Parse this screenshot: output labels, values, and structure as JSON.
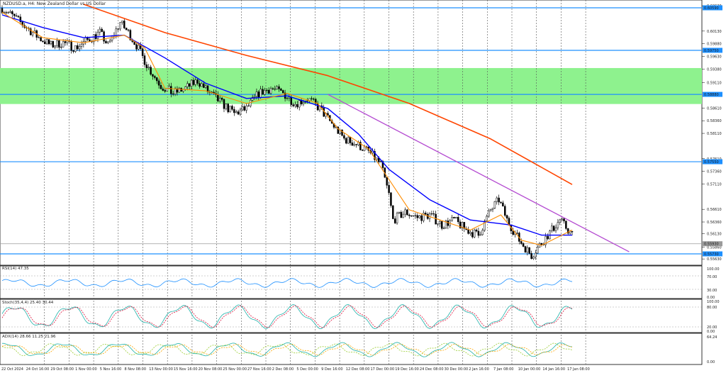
{
  "symbol_title": "NZDUSD.a, H4:  New Zealand Dollar vs US Dollar",
  "colors": {
    "background": "#ffffff",
    "bull": "#000000",
    "bear": "#000000",
    "zone": "#8ef28e",
    "hline": "#1e90ff",
    "hline_tag": "#1e90ff",
    "ma_fast": "#ff8c00",
    "ma_mid": "#0000ff",
    "ma_slow": "#ff4500",
    "trendline": "#b44bd1",
    "rsi": "#1e90ff",
    "stoch_main": "#20b2aa",
    "stoch_signal": "#dc143c",
    "adx_main": "#20b2aa",
    "adx_plus": "#9acd32",
    "adx_minus": "#ffa500"
  },
  "price_axis": {
    "ticks": [
      "0.60630",
      "0.60130",
      "0.59880",
      "0.59630",
      "0.59380",
      "0.59110",
      "0.58610",
      "0.58360",
      "0.58110",
      "0.57610",
      "0.57360",
      "0.57110",
      "0.56610",
      "0.56360",
      "0.56130",
      "0.55860",
      "0.55630"
    ],
    "range": [
      0.5552,
      0.6066
    ]
  },
  "hlines": [
    {
      "price": 0.6059,
      "tag": "0.60590"
    },
    {
      "price": 0.5975,
      "tag": "0.59750"
    },
    {
      "price": 0.5888,
      "tag": "0.58880"
    },
    {
      "price": 0.5755,
      "tag": "0.57550"
    },
    {
      "price": 0.5573,
      "tag": "0.55730"
    }
  ],
  "current_price": {
    "price": 0.5593,
    "tag": "0.55930"
  },
  "zone": {
    "top": 0.594,
    "bottom": 0.5869
  },
  "time_axis": [
    "22 Oct 2024",
    "24 Oct 16:00",
    "29 Oct 08:00",
    "1 Nov 00:00",
    "5 Nov 16:00",
    "8 Nov 08:00",
    "13 Nov 00:00",
    "15 Nov 16:00",
    "20 Nov 08:00",
    "25 Nov 00:00",
    "27 Nov 16:00",
    "2 Dec 08:00",
    "5 Dec 00:00",
    "9 Dec 16:00",
    "12 Dec 08:00",
    "17 Dec 00:00",
    "19 Dec 16:00",
    "24 Dec 08:00",
    "30 Dec 00:00",
    "2 Jan 16:00",
    "7 Jan 08:00",
    "10 Jan 00:00",
    "14 Jan 16:00",
    "17 Jan 08:00"
  ],
  "rsi": {
    "label": "RSI(14) 47.35",
    "ticks": [
      "100.00",
      "70.00",
      "30.00",
      "0.00"
    ]
  },
  "stoch": {
    "label": "Stoch(35,4,4) 25.40 30.44",
    "ticks": [
      "100.00",
      "80.00",
      "20.00",
      "0.00"
    ]
  },
  "adx": {
    "label": "ADX(14) 28.66 11.25 21.96",
    "ticks": [
      "64.24",
      "0.00"
    ]
  },
  "chart_data": {
    "type": "candlestick",
    "title": "NZDUSD.a, H4:  New Zealand Dollar vs US Dollar",
    "ylim": [
      0.5552,
      0.6066
    ],
    "close_path": [
      [
        0,
        0.6058
      ],
      [
        6,
        0.604
      ],
      [
        12,
        0.602
      ],
      [
        18,
        0.6
      ],
      [
        24,
        0.5985
      ],
      [
        30,
        0.599
      ],
      [
        36,
        0.598
      ],
      [
        42,
        0.5995
      ],
      [
        48,
        0.601
      ],
      [
        52,
        0.5985
      ],
      [
        58,
        0.603
      ],
      [
        62,
        0.601
      ],
      [
        66,
        0.5985
      ],
      [
        72,
        0.594
      ],
      [
        78,
        0.5905
      ],
      [
        84,
        0.589
      ],
      [
        90,
        0.59
      ],
      [
        96,
        0.5915
      ],
      [
        102,
        0.589
      ],
      [
        108,
        0.587
      ],
      [
        114,
        0.585
      ],
      [
        120,
        0.586
      ],
      [
        126,
        0.589
      ],
      [
        132,
        0.59
      ],
      [
        138,
        0.589
      ],
      [
        144,
        0.587
      ],
      [
        150,
        0.588
      ],
      [
        156,
        0.586
      ],
      [
        162,
        0.583
      ],
      [
        168,
        0.58
      ],
      [
        174,
        0.579
      ],
      [
        180,
        0.5775
      ],
      [
        186,
        0.575
      ],
      [
        190,
        0.569
      ],
      [
        192,
        0.564
      ],
      [
        198,
        0.5655
      ],
      [
        204,
        0.5645
      ],
      [
        210,
        0.565
      ],
      [
        216,
        0.563
      ],
      [
        222,
        0.564
      ],
      [
        228,
        0.562
      ],
      [
        234,
        0.561
      ],
      [
        240,
        0.566
      ],
      [
        244,
        0.568
      ],
      [
        248,
        0.564
      ],
      [
        254,
        0.56
      ],
      [
        260,
        0.557
      ],
      [
        264,
        0.559
      ],
      [
        270,
        0.562
      ],
      [
        274,
        0.564
      ],
      [
        280,
        0.561
      ]
    ],
    "ma_fast": [
      [
        0,
        0.605
      ],
      [
        20,
        0.6
      ],
      [
        40,
        0.599
      ],
      [
        60,
        0.6005
      ],
      [
        70,
        0.598
      ],
      [
        80,
        0.59
      ],
      [
        100,
        0.5895
      ],
      [
        120,
        0.587
      ],
      [
        140,
        0.589
      ],
      [
        155,
        0.587
      ],
      [
        165,
        0.582
      ],
      [
        180,
        0.578
      ],
      [
        190,
        0.572
      ],
      [
        200,
        0.566
      ],
      [
        215,
        0.564
      ],
      [
        230,
        0.562
      ],
      [
        245,
        0.565
      ],
      [
        255,
        0.56
      ],
      [
        265,
        0.559
      ],
      [
        280,
        0.562
      ]
    ],
    "ma_mid": [
      [
        0,
        0.6045
      ],
      [
        20,
        0.602
      ],
      [
        40,
        0.6
      ],
      [
        60,
        0.6005
      ],
      [
        80,
        0.596
      ],
      [
        100,
        0.591
      ],
      [
        120,
        0.588
      ],
      [
        140,
        0.5885
      ],
      [
        160,
        0.586
      ],
      [
        175,
        0.581
      ],
      [
        190,
        0.574
      ],
      [
        210,
        0.568
      ],
      [
        230,
        0.564
      ],
      [
        250,
        0.563
      ],
      [
        265,
        0.561
      ],
      [
        280,
        0.561
      ]
    ],
    "ma_slow": [
      [
        40,
        0.6066
      ],
      [
        80,
        0.601
      ],
      [
        120,
        0.5965
      ],
      [
        160,
        0.5925
      ],
      [
        200,
        0.587
      ],
      [
        240,
        0.58
      ],
      [
        280,
        0.571
      ]
    ],
    "trendline": [
      [
        160,
        0.5888
      ],
      [
        308,
        0.5577
      ]
    ]
  }
}
